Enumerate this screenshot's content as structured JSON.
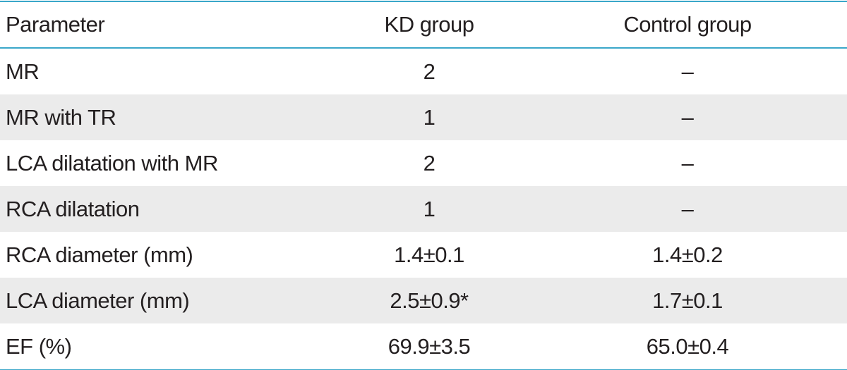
{
  "table": {
    "header": [
      "Parameter",
      "KD group",
      "Control group"
    ],
    "rows": [
      [
        "MR",
        "2",
        "–"
      ],
      [
        "MR with TR",
        "1",
        "–"
      ],
      [
        "LCA dilatation with MR",
        "2",
        "–"
      ],
      [
        "RCA dilatation",
        "1",
        "–"
      ],
      [
        "RCA diameter (mm)",
        "1.4±0.1",
        "1.4±0.2"
      ],
      [
        "LCA diameter (mm)",
        "2.5±0.9*",
        "1.7±0.1"
      ],
      [
        "EF (%)",
        "69.9±3.5",
        "65.0±0.4"
      ]
    ]
  }
}
